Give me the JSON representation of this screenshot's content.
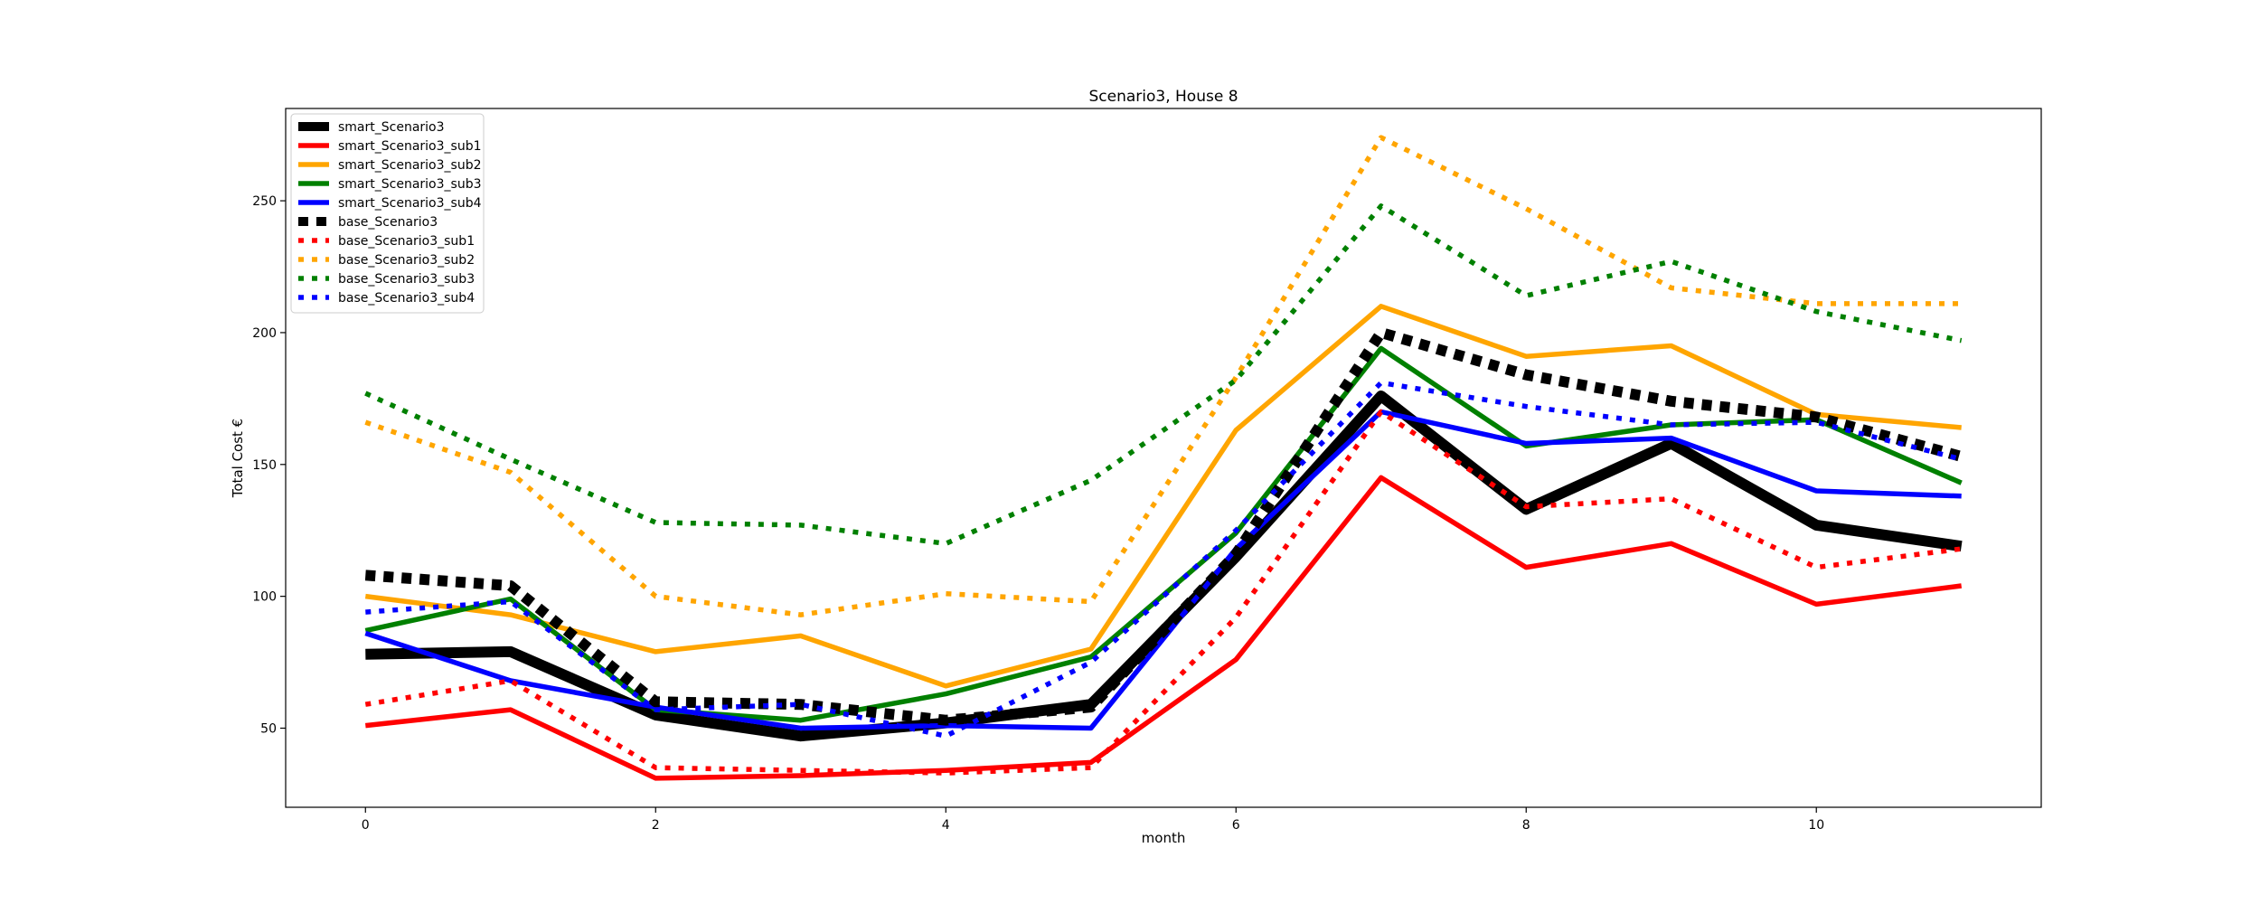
{
  "chart_data": {
    "type": "line",
    "title": "Scenario3, House 8",
    "xlabel": "month",
    "ylabel": "Total Cost €",
    "x": [
      0,
      1,
      2,
      3,
      4,
      5,
      6,
      7,
      8,
      9,
      10,
      11
    ],
    "xlim": [
      -0.55,
      11.55
    ],
    "ylim": [
      20,
      285
    ],
    "xticks": [
      0,
      2,
      4,
      6,
      8,
      10
    ],
    "yticks": [
      50,
      100,
      150,
      200,
      250
    ],
    "grid": false,
    "legend_position": "upper-left",
    "series": [
      {
        "name": "smart_Scenario3",
        "color": "#000000",
        "style": "solid-thick",
        "values": [
          78,
          79,
          55,
          47,
          52,
          59,
          115,
          176,
          133,
          158,
          127,
          119
        ]
      },
      {
        "name": "smart_Scenario3_sub1",
        "color": "#ff0000",
        "style": "solid",
        "values": [
          51,
          57,
          31,
          32,
          34,
          37,
          76,
          145,
          111,
          120,
          97,
          104
        ]
      },
      {
        "name": "smart_Scenario3_sub2",
        "color": "#ffa500",
        "style": "solid",
        "values": [
          100,
          93,
          79,
          85,
          66,
          80,
          163,
          210,
          191,
          195,
          169,
          164
        ]
      },
      {
        "name": "smart_Scenario3_sub3",
        "color": "#008000",
        "style": "solid",
        "values": [
          87,
          99,
          57,
          53,
          63,
          77,
          124,
          194,
          157,
          165,
          167,
          143
        ]
      },
      {
        "name": "smart_Scenario3_sub4",
        "color": "#0000ff",
        "style": "solid",
        "values": [
          86,
          68,
          58,
          50,
          51,
          50,
          118,
          170,
          158,
          160,
          140,
          138
        ]
      },
      {
        "name": "base_Scenario3",
        "color": "#000000",
        "style": "dotted-thick",
        "values": [
          108,
          104,
          60,
          59,
          53,
          58,
          116,
          200,
          184,
          174,
          168,
          153
        ]
      },
      {
        "name": "base_Scenario3_sub1",
        "color": "#ff0000",
        "style": "dotted",
        "values": [
          59,
          68,
          35,
          34,
          33,
          35,
          92,
          170,
          134,
          137,
          111,
          118
        ]
      },
      {
        "name": "base_Scenario3_sub2",
        "color": "#ffa500",
        "style": "dotted",
        "values": [
          166,
          147,
          100,
          93,
          101,
          98,
          183,
          274,
          247,
          217,
          211,
          211
        ]
      },
      {
        "name": "base_Scenario3_sub3",
        "color": "#008000",
        "style": "dotted",
        "values": [
          177,
          152,
          128,
          127,
          120,
          144,
          182,
          248,
          214,
          227,
          208,
          197
        ]
      },
      {
        "name": "base_Scenario3_sub4",
        "color": "#0000ff",
        "style": "dotted",
        "values": [
          94,
          98,
          57,
          59,
          47,
          75,
          125,
          181,
          172,
          165,
          166,
          152
        ]
      }
    ]
  }
}
